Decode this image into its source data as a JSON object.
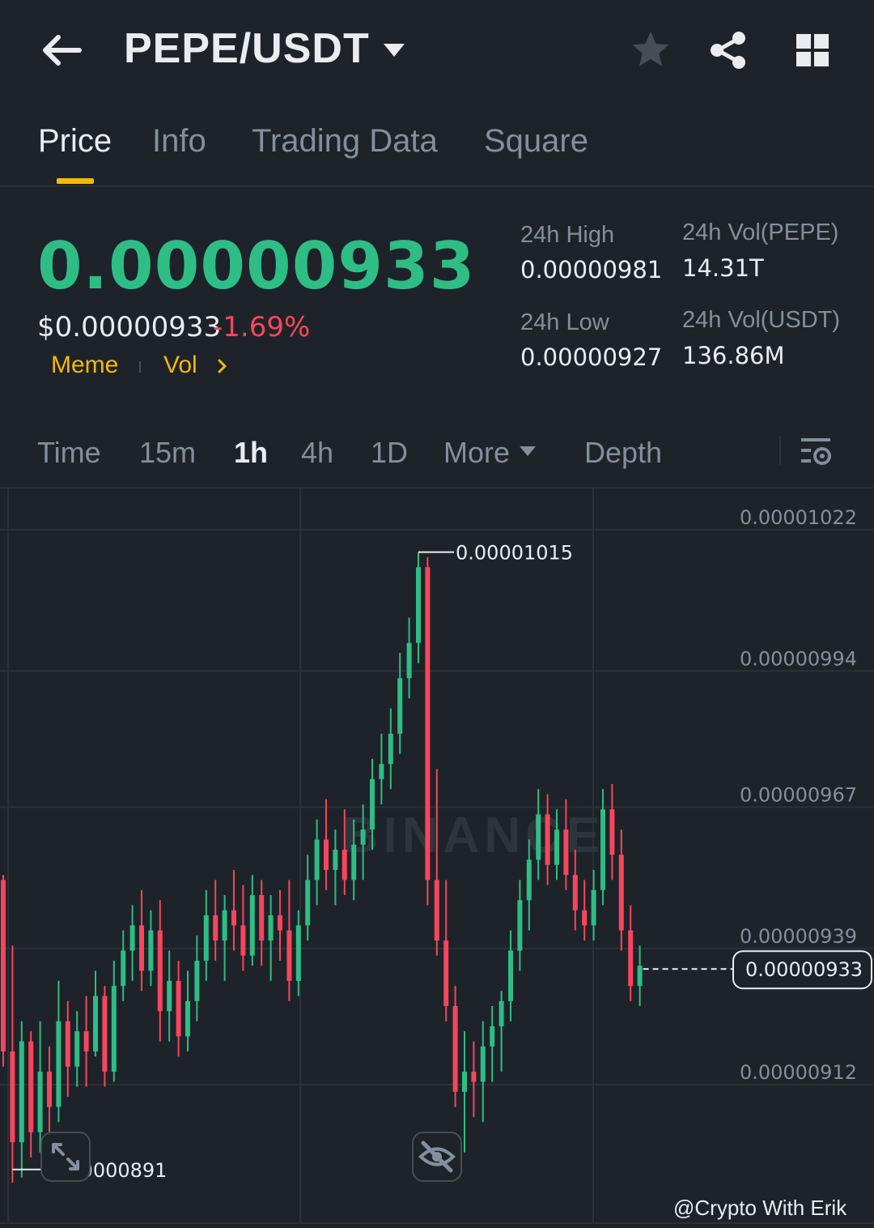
{
  "header": {
    "pair": "PEPE/USDT",
    "icons": [
      "back-arrow-icon",
      "caret-down-icon",
      "star-icon",
      "share-icon",
      "grid-icon"
    ]
  },
  "tabs": [
    {
      "label": "Price",
      "active": true
    },
    {
      "label": "Info"
    },
    {
      "label": "Trading Data"
    },
    {
      "label": "Square"
    }
  ],
  "price": {
    "last": "0.00000933",
    "usd": "$0.00000933",
    "change": "-1.69%",
    "tags": [
      "Meme",
      "Vol"
    ]
  },
  "stats": {
    "high_label": "24h High",
    "high_value": "0.00000981",
    "low_label": "24h Low",
    "low_value": "0.00000927",
    "vol_base_label": "24h Vol(PEPE)",
    "vol_base_value": "14.31T",
    "vol_quote_label": "24h Vol(USDT)",
    "vol_quote_value": "136.86M"
  },
  "intervals": {
    "items": [
      "Time",
      "15m",
      "1h",
      "4h",
      "1D",
      "More",
      "Depth"
    ],
    "active": "1h"
  },
  "chart_data": {
    "type": "candlestick",
    "y_axis_labels": [
      "0.00001022",
      "0.00000994",
      "0.00000967",
      "0.00000939",
      "0.00000912"
    ],
    "ylim": [
      8.8e-06,
      1.028e-05
    ],
    "high_marker": "0.00001015",
    "low_marker": "0.00000891",
    "current_price": "0.00000933",
    "watermark": "BINANCE",
    "colors": {
      "up": "#2ebd85",
      "down": "#f6465d",
      "grid": "#2b3139"
    },
    "candles": [
      [
        9.5e-06,
        9.51e-06,
        9.13e-06,
        9.16e-06
      ],
      [
        9.16e-06,
        9.37e-06,
        8.9e-06,
        8.98e-06
      ],
      [
        8.98e-06,
        9.22e-06,
        8.91e-06,
        9.18e-06
      ],
      [
        9.18e-06,
        9.2e-06,
        8.95e-06,
        9e-06
      ],
      [
        9e-06,
        9.22e-06,
        8.96e-06,
        9.12e-06
      ],
      [
        9.12e-06,
        9.17e-06,
        8.99e-06,
        9.05e-06
      ],
      [
        9.05e-06,
        9.3e-06,
        9.02e-06,
        9.22e-06
      ],
      [
        9.22e-06,
        9.26e-06,
        9.07e-06,
        9.13e-06
      ],
      [
        9.13e-06,
        9.24e-06,
        9.09e-06,
        9.2e-06
      ],
      [
        9.2e-06,
        9.27e-06,
        9.09e-06,
        9.16e-06
      ],
      [
        9.16e-06,
        9.32e-06,
        9.15e-06,
        9.27e-06
      ],
      [
        9.27e-06,
        9.29e-06,
        9.09e-06,
        9.12e-06
      ],
      [
        9.12e-06,
        9.34e-06,
        9.1e-06,
        9.29e-06
      ],
      [
        9.29e-06,
        9.4e-06,
        9.26e-06,
        9.36e-06
      ],
      [
        9.36e-06,
        9.45e-06,
        9.3e-06,
        9.41e-06
      ],
      [
        9.41e-06,
        9.48e-06,
        9.28e-06,
        9.32e-06
      ],
      [
        9.32e-06,
        9.44e-06,
        9.29e-06,
        9.4e-06
      ],
      [
        9.4e-06,
        9.46e-06,
        9.18e-06,
        9.24e-06
      ],
      [
        9.24e-06,
        9.36e-06,
        9.18e-06,
        9.3e-06
      ],
      [
        9.3e-06,
        9.34e-06,
        9.15e-06,
        9.19e-06
      ],
      [
        9.19e-06,
        9.32e-06,
        9.16e-06,
        9.26e-06
      ],
      [
        9.26e-06,
        9.39e-06,
        9.22e-06,
        9.34e-06
      ],
      [
        9.34e-06,
        9.48e-06,
        9.3e-06,
        9.43e-06
      ],
      [
        9.43e-06,
        9.5e-06,
        9.34e-06,
        9.38e-06
      ],
      [
        9.38e-06,
        9.47e-06,
        9.3e-06,
        9.44e-06
      ],
      [
        9.44e-06,
        9.52e-06,
        9.36e-06,
        9.41e-06
      ],
      [
        9.41e-06,
        9.49e-06,
        9.32e-06,
        9.35e-06
      ],
      [
        9.35e-06,
        9.51e-06,
        9.33e-06,
        9.47e-06
      ],
      [
        9.47e-06,
        9.5e-06,
        9.33e-06,
        9.38e-06
      ],
      [
        9.38e-06,
        9.47e-06,
        9.3e-06,
        9.43e-06
      ],
      [
        9.43e-06,
        9.48e-06,
        9.34e-06,
        9.4e-06
      ],
      [
        9.4e-06,
        9.5e-06,
        9.26e-06,
        9.3e-06
      ],
      [
        9.3e-06,
        9.44e-06,
        9.27e-06,
        9.41e-06
      ],
      [
        9.41e-06,
        9.55e-06,
        9.38e-06,
        9.5e-06
      ],
      [
        9.5e-06,
        9.62e-06,
        9.45e-06,
        9.58e-06
      ],
      [
        9.58e-06,
        9.66e-06,
        9.48e-06,
        9.52e-06
      ],
      [
        9.52e-06,
        9.6e-06,
        9.45e-06,
        9.56e-06
      ],
      [
        9.56e-06,
        9.64e-06,
        9.47e-06,
        9.5e-06
      ],
      [
        9.5e-06,
        9.62e-06,
        9.46e-06,
        9.57e-06
      ],
      [
        9.57e-06,
        9.65e-06,
        9.5e-06,
        9.6e-06
      ],
      [
        9.6e-06,
        9.74e-06,
        9.56e-06,
        9.7e-06
      ],
      [
        9.7e-06,
        9.79e-06,
        9.65e-06,
        9.73e-06
      ],
      [
        9.73e-06,
        9.84e-06,
        9.68e-06,
        9.79e-06
      ],
      [
        9.79e-06,
        9.95e-06,
        9.75e-06,
        9.9e-06
      ],
      [
        9.9e-06,
        1.002e-05,
        9.86e-06,
        9.97e-06
      ],
      [
        9.97e-06,
        1.015e-05,
        9.93e-06,
        1.012e-05
      ],
      [
        1.012e-05,
        1.014e-05,
        9.45e-06,
        9.5e-06
      ],
      [
        9.5e-06,
        9.72e-06,
        9.35e-06,
        9.38e-06
      ],
      [
        9.38e-06,
        9.5e-06,
        9.22e-06,
        9.25e-06
      ],
      [
        9.25e-06,
        9.29e-06,
        9.05e-06,
        9.08e-06
      ],
      [
        9.08e-06,
        9.2e-06,
        8.96e-06,
        9.12e-06
      ],
      [
        9.12e-06,
        9.18e-06,
        9.03e-06,
        9.1e-06
      ],
      [
        9.1e-06,
        9.22e-06,
        9.02e-06,
        9.17e-06
      ],
      [
        9.17e-06,
        9.25e-06,
        9.1e-06,
        9.21e-06
      ],
      [
        9.21e-06,
        9.28e-06,
        9.12e-06,
        9.26e-06
      ],
      [
        9.26e-06,
        9.4e-06,
        9.22e-06,
        9.36e-06
      ],
      [
        9.36e-06,
        9.5e-06,
        9.32e-06,
        9.46e-06
      ],
      [
        9.46e-06,
        9.58e-06,
        9.4e-06,
        9.54e-06
      ],
      [
        9.54e-06,
        9.68e-06,
        9.5e-06,
        9.63e-06
      ],
      [
        9.63e-06,
        9.67e-06,
        9.49e-06,
        9.53e-06
      ],
      [
        9.53e-06,
        9.64e-06,
        9.5e-06,
        9.6e-06
      ],
      [
        9.6e-06,
        9.66e-06,
        9.48e-06,
        9.51e-06
      ],
      [
        9.51e-06,
        9.56e-06,
        9.4e-06,
        9.44e-06
      ],
      [
        9.44e-06,
        9.5e-06,
        9.38e-06,
        9.41e-06
      ],
      [
        9.41e-06,
        9.52e-06,
        9.38e-06,
        9.48e-06
      ],
      [
        9.48e-06,
        9.68e-06,
        9.45e-06,
        9.64e-06
      ],
      [
        9.64e-06,
        9.69e-06,
        9.5e-06,
        9.55e-06
      ],
      [
        9.55e-06,
        9.6e-06,
        9.36e-06,
        9.4e-06
      ],
      [
        9.4e-06,
        9.45e-06,
        9.26e-06,
        9.29e-06
      ],
      [
        9.29e-06,
        9.37e-06,
        9.25e-06,
        9.33e-06
      ]
    ]
  },
  "chart_buttons": [
    "expand-icon",
    "hide-indicator-icon"
  ],
  "credit": "@Crypto With Erik"
}
